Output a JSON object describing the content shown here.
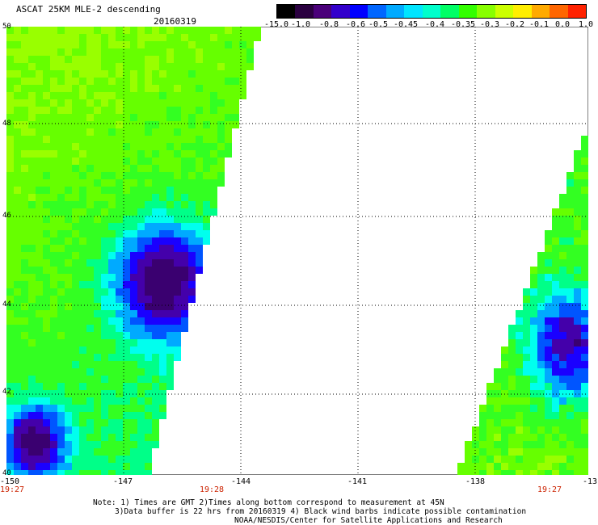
{
  "header": {
    "title": "ASCAT 25KM MLE-2 descending",
    "date": "20160319"
  },
  "colorbar": {
    "labels": [
      "-15.0",
      "-1.0",
      "-0.8",
      "-0.6",
      "-0.5",
      "-0.45",
      "-0.4",
      "-0.35",
      "-0.3",
      "-0.2",
      "-0.1",
      "0.0",
      "1.0"
    ],
    "colors": [
      "#000000",
      "#2a0040",
      "#4a007a",
      "#3300cc",
      "#0000ff",
      "#0066ff",
      "#00aaff",
      "#00e5ff",
      "#00ffcc",
      "#00ff66",
      "#33ff00",
      "#88ff00",
      "#ccff00",
      "#ffee00",
      "#ffaa00",
      "#ff6600",
      "#ff2200"
    ]
  },
  "map": {
    "lat_labels": [
      "50",
      "48",
      "46",
      "44",
      "42",
      "40"
    ],
    "lon_labels": [
      "-150",
      "-147",
      "-144",
      "-141",
      "-138",
      "-13"
    ],
    "time_labels": [
      "19:27",
      "19:28",
      "19:27"
    ]
  },
  "footer": {
    "line1": "Note: 1) Times are GMT 2)Times along bottom correspond to measurement at 45N",
    "line2": "3)Data buffer is 22 hrs from 20160319 4) Black wind barbs indicate possible contamination",
    "line3": "NOAA/NESDIS/Center for Satellite Applications and Research"
  }
}
